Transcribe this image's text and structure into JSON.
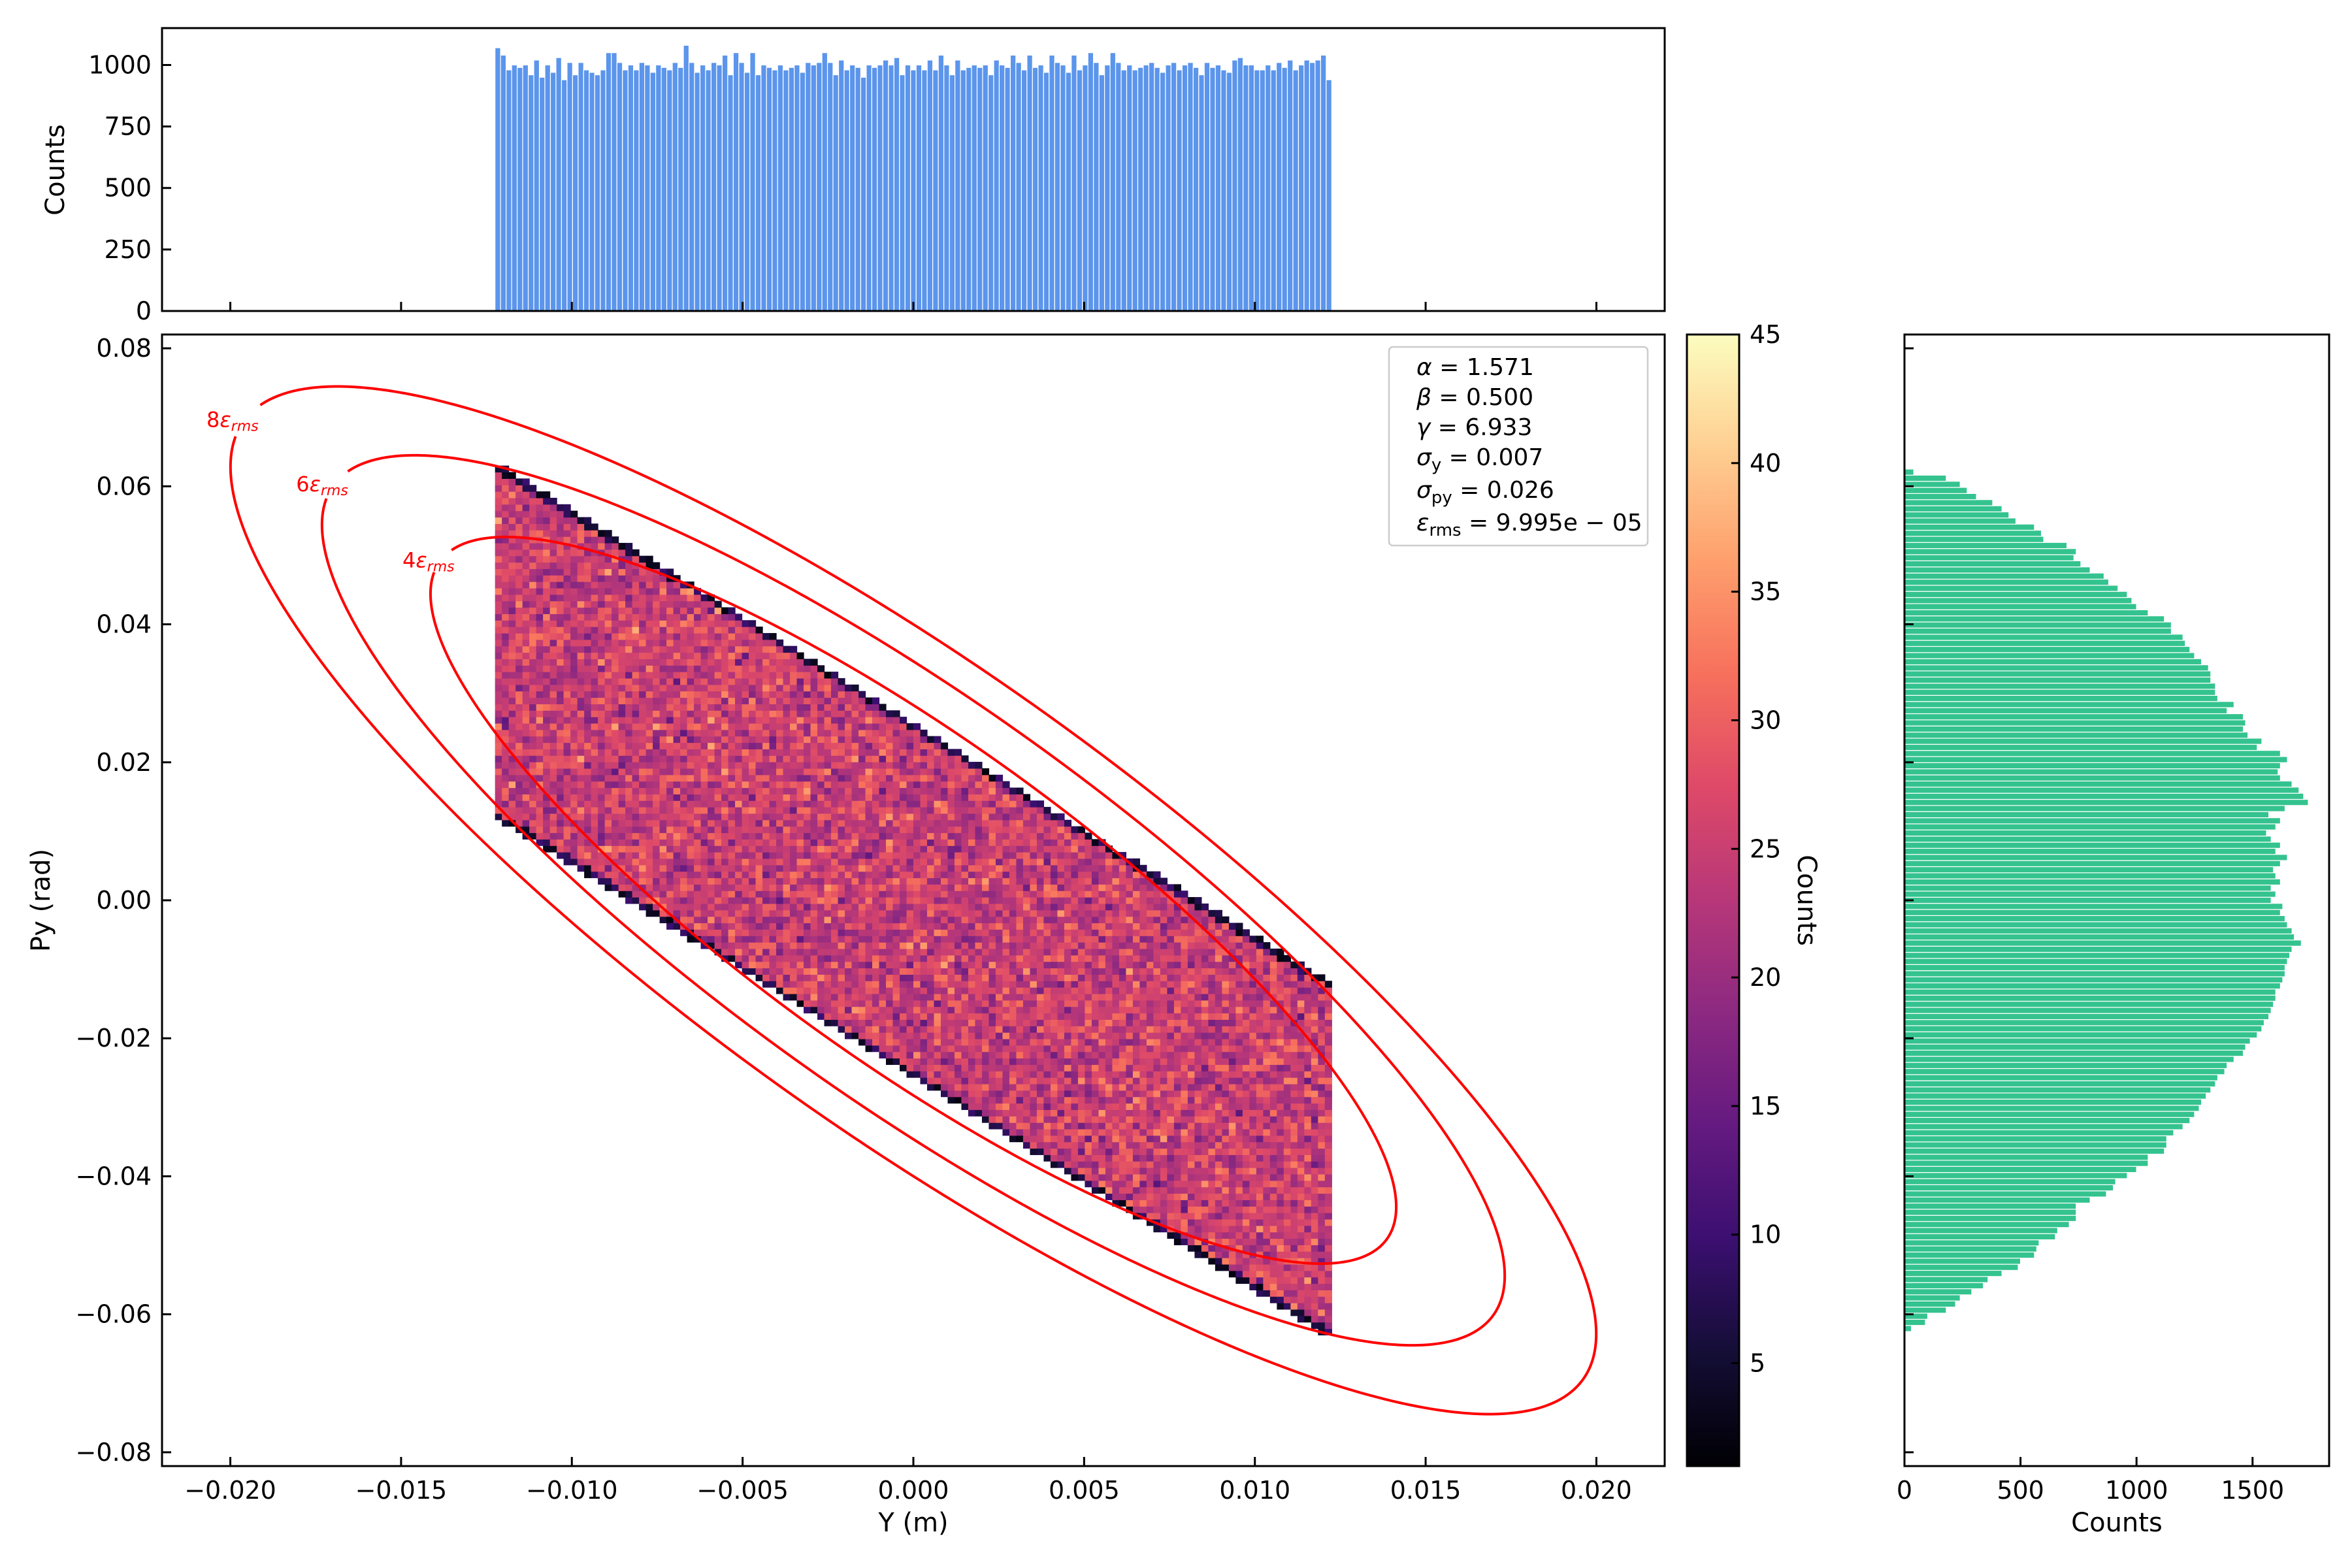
{
  "colors": {
    "top_hist": "#5b95ec",
    "right_hist": "#34c38f",
    "ellipse": "#ff0000",
    "colormap": "magma"
  },
  "chart_data": [
    {
      "name": "top-histogram",
      "type": "bar",
      "ylabel": "Counts",
      "xlim": [
        -0.022,
        0.022
      ],
      "ylim": [
        0,
        1150
      ],
      "x_ticks": [
        -0.02,
        -0.015,
        -0.01,
        -0.005,
        0.0,
        0.005,
        0.01,
        0.015,
        0.02
      ],
      "y_ticks": [
        0,
        250,
        500,
        750,
        1000
      ],
      "y_tick_labels": [
        "0",
        "250",
        "500",
        "750",
        "1000"
      ],
      "bin_range": [
        -0.01225,
        0.01225
      ],
      "values": [
        1070,
        1040,
        980,
        1000,
        990,
        1000,
        960,
        1020,
        950,
        1000,
        970,
        1030,
        940,
        1010,
        960,
        1010,
        980,
        970,
        960,
        980,
        1050,
        1050,
        1010,
        980,
        1000,
        980,
        1010,
        1000,
        970,
        1000,
        990,
        980,
        1010,
        990,
        1080,
        1010,
        970,
        1000,
        980,
        1010,
        1000,
        1040,
        960,
        1050,
        1010,
        970,
        1050,
        960,
        1000,
        990,
        980,
        1000,
        980,
        990,
        1000,
        970,
        1010,
        1000,
        1010,
        1050,
        1010,
        960,
        1020,
        980,
        1000,
        990,
        950,
        1000,
        990,
        1000,
        1020,
        1000,
        1030,
        960,
        1000,
        980,
        1000,
        980,
        1020,
        980,
        1040,
        1000,
        960,
        1020,
        980,
        990,
        1000,
        990,
        1000,
        960,
        1020,
        1000,
        990,
        1040,
        1010,
        980,
        1040,
        990,
        1000,
        970,
        1040,
        1010,
        1000,
        970,
        1040,
        980,
        1000,
        1050,
        1010,
        960,
        1000,
        1050,
        1010,
        980,
        1000,
        980,
        990,
        1000,
        1010,
        990,
        970,
        1000,
        1010,
        980,
        1000,
        1010,
        990,
        960,
        1010,
        990,
        1000,
        980,
        970,
        1020,
        1030,
        1000,
        1000,
        980,
        980,
        1000,
        980,
        1010,
        990,
        1020,
        980,
        1000,
        1020,
        1010,
        1020,
        1040,
        940
      ]
    },
    {
      "name": "phase-space-heatmap",
      "type": "heatmap",
      "xlabel": "Y (m)",
      "ylabel": "Py (rad)",
      "xlim": [
        -0.022,
        0.022
      ],
      "ylim": [
        -0.082,
        0.082
      ],
      "x_ticks": [
        -0.02,
        -0.015,
        -0.01,
        -0.005,
        0.0,
        0.005,
        0.01,
        0.015,
        0.02
      ],
      "x_tick_labels": [
        "−0.020",
        "−0.015",
        "−0.010",
        "−0.005",
        "0.000",
        "0.005",
        "0.010",
        "0.015",
        "0.020"
      ],
      "y_ticks": [
        -0.08,
        -0.06,
        -0.04,
        -0.02,
        0.0,
        0.02,
        0.04,
        0.06,
        0.08
      ],
      "y_tick_labels": [
        "−0.08",
        "−0.06",
        "−0.04",
        "−0.02",
        "0.00",
        "0.02",
        "0.04",
        "0.06",
        "0.08"
      ],
      "region": {
        "y_min": -0.01225,
        "y_max": 0.01225,
        "py_upper_at_ymin": 0.063,
        "py_lower_at_ymin": 0.0125,
        "py_upper_at_ymax": -0.0125,
        "py_lower_at_ymax": -0.063,
        "cells_x": 122,
        "cells_y": 135
      },
      "colorbar": {
        "label": "Counts",
        "range": [
          1,
          45
        ],
        "ticks": [
          5,
          10,
          15,
          20,
          25,
          30,
          35,
          40,
          45
        ],
        "tick_labels": [
          "5",
          "10",
          "15",
          "20",
          "25",
          "30",
          "35",
          "40",
          "45"
        ]
      },
      "parameters": {
        "alpha": 1.571,
        "beta": 0.5,
        "gamma": 6.933,
        "emittance_rms": 9.995e-05
      },
      "legend": {
        "location": "top-right",
        "lines": [
          "α = 1.571",
          "β = 0.500",
          "γ = 6.933",
          "σ",
          "σ",
          "ε"
        ]
      },
      "legend_parts": {
        "alpha": {
          "sym": "α",
          "val": " = 1.571"
        },
        "beta": {
          "sym": "β",
          "val": " = 0.500"
        },
        "gamma": {
          "sym": "γ",
          "val": " = 6.933"
        },
        "sigma_y": {
          "sym": "σ",
          "sub": "y",
          "val": " = 0.007"
        },
        "sigma_py": {
          "sym": "σ",
          "sub": "py",
          "val": " = 0.026"
        },
        "eps_rms": {
          "sym": "ε",
          "sub": "rms",
          "val": " = 9.995e − 05"
        }
      },
      "ellipses": [
        {
          "label_num": "8",
          "label_sym": "ε",
          "label_sub": "rms",
          "scale": 8
        },
        {
          "label_num": "6",
          "label_sym": "ε",
          "label_sub": "rms",
          "scale": 6
        },
        {
          "label_num": "4",
          "label_sym": "ε",
          "label_sub": "rms",
          "scale": 4
        }
      ]
    },
    {
      "name": "right-histogram",
      "type": "bar",
      "orientation": "horizontal",
      "xlabel": "Counts",
      "xlim": [
        0,
        1830
      ],
      "x_ticks": [
        0,
        500,
        1000,
        1500
      ],
      "x_tick_labels": [
        "0",
        "500",
        "1000",
        "1500"
      ],
      "bin_range": [
        -0.0625,
        0.0625
      ],
      "values_bottom_to_top": [
        30,
        90,
        100,
        180,
        220,
        240,
        290,
        340,
        360,
        420,
        490,
        500,
        560,
        570,
        580,
        650,
        660,
        710,
        740,
        740,
        740,
        800,
        870,
        900,
        910,
        960,
        1000,
        1050,
        1050,
        1120,
        1130,
        1130,
        1160,
        1200,
        1230,
        1250,
        1270,
        1280,
        1300,
        1320,
        1340,
        1350,
        1380,
        1390,
        1420,
        1460,
        1470,
        1490,
        1520,
        1540,
        1550,
        1570,
        1580,
        1590,
        1600,
        1600,
        1620,
        1630,
        1640,
        1640,
        1650,
        1660,
        1670,
        1710,
        1680,
        1670,
        1650,
        1640,
        1620,
        1630,
        1580,
        1600,
        1580,
        1620,
        1600,
        1590,
        1620,
        1650,
        1600,
        1620,
        1580,
        1560,
        1600,
        1620,
        1570,
        1640,
        1740,
        1720,
        1700,
        1670,
        1620,
        1610,
        1620,
        1650,
        1620,
        1520,
        1540,
        1480,
        1460,
        1470,
        1460,
        1390,
        1420,
        1350,
        1340,
        1340,
        1320,
        1320,
        1310,
        1280,
        1250,
        1230,
        1210,
        1200,
        1150,
        1150,
        1120,
        1050,
        1000,
        980,
        960,
        920,
        880,
        860,
        800,
        760,
        730,
        740,
        700,
        600,
        590,
        560,
        480,
        450,
        420,
        380,
        310,
        270,
        240,
        180,
        40
      ]
    }
  ]
}
